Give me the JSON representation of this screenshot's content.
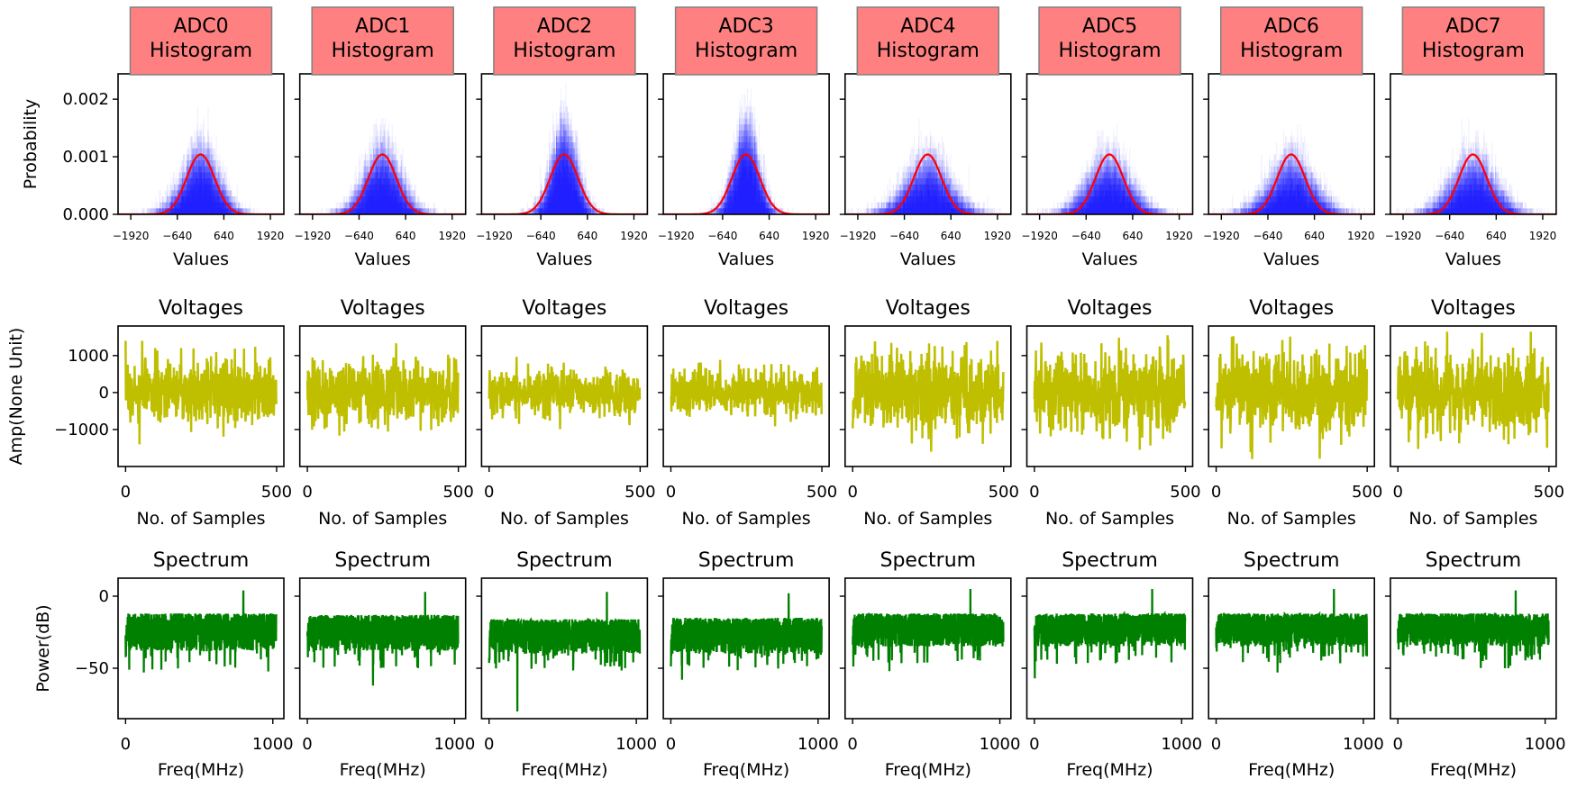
{
  "figure": {
    "colors": {
      "histogram_bars": "#0000ff",
      "fit_curve": "#ff0000",
      "voltage_line": "#bfbf00",
      "spectrum_line": "#008000",
      "title_box_fill": "#ff8080",
      "title_box_edge": "#808080"
    }
  },
  "chart_data": [
    {
      "type": "histogram",
      "title_lines": [
        "ADC0",
        "Histogram"
      ],
      "title_boxed": true,
      "xlabel": "Values",
      "ylabel": "Probability",
      "xlim": [
        -2270,
        2290
      ],
      "ylim": [
        0,
        0.00244
      ],
      "xticks": [
        -1920,
        -640,
        640,
        1920
      ],
      "xticklabels": [
        "−1920",
        "−640",
        "640",
        "1920"
      ],
      "yticks": [
        0,
        0.001,
        0.002
      ],
      "yticklabels": [
        "0.000",
        "0.001",
        "0.002"
      ],
      "sample_std": 450,
      "fit": {
        "mean": 0,
        "sigma": 384,
        "peak": 0.00104
      }
    },
    {
      "type": "histogram",
      "title_lines": [
        "ADC1",
        "Histogram"
      ],
      "title_boxed": true,
      "xlabel": "Values",
      "ylabel": "",
      "xlim": [
        -2270,
        2290
      ],
      "ylim": [
        0,
        0.00244
      ],
      "xticks": [
        -1920,
        -640,
        640,
        1920
      ],
      "xticklabels": [
        "−1920",
        "−640",
        "640",
        "1920"
      ],
      "yticks": [
        0,
        0.001,
        0.002
      ],
      "yticklabels": [],
      "sample_std": 450,
      "fit": {
        "mean": 0,
        "sigma": 384,
        "peak": 0.00104
      }
    },
    {
      "type": "histogram",
      "title_lines": [
        "ADC2",
        "Histogram"
      ],
      "title_boxed": true,
      "xlabel": "Values",
      "ylabel": "",
      "xlim": [
        -2270,
        2290
      ],
      "ylim": [
        0,
        0.00244
      ],
      "xticks": [
        -1920,
        -640,
        640,
        1920
      ],
      "xticklabels": [
        "−1920",
        "−640",
        "640",
        "1920"
      ],
      "yticks": [
        0,
        0.001,
        0.002
      ],
      "yticklabels": [],
      "sample_std": 320,
      "fit": {
        "mean": 0,
        "sigma": 384,
        "peak": 0.00104
      }
    },
    {
      "type": "histogram",
      "title_lines": [
        "ADC3",
        "Histogram"
      ],
      "title_boxed": true,
      "xlabel": "Values",
      "ylabel": "",
      "xlim": [
        -2270,
        2290
      ],
      "ylim": [
        0,
        0.00244
      ],
      "xticks": [
        -1920,
        -640,
        640,
        1920
      ],
      "xticklabels": [
        "−1920",
        "−640",
        "640",
        "1920"
      ],
      "yticks": [
        0,
        0.001,
        0.002
      ],
      "yticklabels": [],
      "sample_std": 310,
      "fit": {
        "mean": 0,
        "sigma": 384,
        "peak": 0.00104
      }
    },
    {
      "type": "histogram",
      "title_lines": [
        "ADC4",
        "Histogram"
      ],
      "title_boxed": true,
      "xlabel": "Values",
      "ylabel": "",
      "xlim": [
        -2270,
        2290
      ],
      "ylim": [
        0,
        0.00244
      ],
      "xticks": [
        -1920,
        -640,
        640,
        1920
      ],
      "xticklabels": [
        "−1920",
        "−640",
        "640",
        "1920"
      ],
      "yticks": [
        0,
        0.001,
        0.002
      ],
      "yticklabels": [],
      "sample_std": 560,
      "fit": {
        "mean": 0,
        "sigma": 384,
        "peak": 0.00104
      }
    },
    {
      "type": "histogram",
      "title_lines": [
        "ADC5",
        "Histogram"
      ],
      "title_boxed": true,
      "xlabel": "Values",
      "ylabel": "",
      "xlim": [
        -2270,
        2290
      ],
      "ylim": [
        0,
        0.00244
      ],
      "xticks": [
        -1920,
        -640,
        640,
        1920
      ],
      "xticklabels": [
        "−1920",
        "−640",
        "640",
        "1920"
      ],
      "yticks": [
        0,
        0.001,
        0.002
      ],
      "yticklabels": [],
      "sample_std": 540,
      "fit": {
        "mean": 0,
        "sigma": 384,
        "peak": 0.00104
      }
    },
    {
      "type": "histogram",
      "title_lines": [
        "ADC6",
        "Histogram"
      ],
      "title_boxed": true,
      "xlabel": "Values",
      "ylabel": "",
      "xlim": [
        -2270,
        2290
      ],
      "ylim": [
        0,
        0.00244
      ],
      "xticks": [
        -1920,
        -640,
        640,
        1920
      ],
      "xticklabels": [
        "−1920",
        "−640",
        "640",
        "1920"
      ],
      "yticks": [
        0,
        0.001,
        0.002
      ],
      "yticklabels": [],
      "sample_std": 560,
      "fit": {
        "mean": 0,
        "sigma": 384,
        "peak": 0.00104
      }
    },
    {
      "type": "histogram",
      "title_lines": [
        "ADC7",
        "Histogram"
      ],
      "title_boxed": true,
      "xlabel": "Values",
      "ylabel": "",
      "xlim": [
        -2270,
        2290
      ],
      "ylim": [
        0,
        0.00244
      ],
      "xticks": [
        -1920,
        -640,
        640,
        1920
      ],
      "xticklabels": [
        "−1920",
        "−640",
        "640",
        "1920"
      ],
      "yticks": [
        0,
        0.001,
        0.002
      ],
      "yticklabels": [],
      "sample_std": 550,
      "fit": {
        "mean": 0,
        "sigma": 384,
        "peak": 0.00104
      }
    },
    {
      "type": "line",
      "title_lines": [
        "Voltages"
      ],
      "xlabel": "No. of Samples",
      "ylabel": "Amp(None Unit)",
      "xlim": [
        -25,
        524
      ],
      "ylim": [
        -2000,
        1800
      ],
      "xticks": [
        0,
        500
      ],
      "xticklabels": [
        "0",
        "500"
      ],
      "yticks": [
        -1000,
        0,
        1000
      ],
      "yticklabels": [
        "−1000",
        "0",
        "1000"
      ],
      "n_samples": 500,
      "std": 450,
      "max_abs": 1400
    },
    {
      "type": "line",
      "title_lines": [
        "Voltages"
      ],
      "xlabel": "No. of Samples",
      "ylabel": "",
      "xlim": [
        -25,
        524
      ],
      "ylim": [
        -2000,
        1800
      ],
      "xticks": [
        0,
        500
      ],
      "xticklabels": [
        "0",
        "500"
      ],
      "yticks": [
        -1000,
        0,
        1000
      ],
      "yticklabels": [],
      "n_samples": 500,
      "std": 450,
      "max_abs": 1350
    },
    {
      "type": "line",
      "title_lines": [
        "Voltages"
      ],
      "xlabel": "No. of Samples",
      "ylabel": "",
      "xlim": [
        -25,
        524
      ],
      "ylim": [
        -2000,
        1800
      ],
      "xticks": [
        0,
        500
      ],
      "xticklabels": [
        "0",
        "500"
      ],
      "yticks": [
        -1000,
        0,
        1000
      ],
      "yticklabels": [],
      "n_samples": 500,
      "std": 320,
      "max_abs": 1000
    },
    {
      "type": "line",
      "title_lines": [
        "Voltages"
      ],
      "xlabel": "No. of Samples",
      "ylabel": "",
      "xlim": [
        -25,
        524
      ],
      "ylim": [
        -2000,
        1800
      ],
      "xticks": [
        0,
        500
      ],
      "xticklabels": [
        "0",
        "500"
      ],
      "yticks": [
        -1000,
        0,
        1000
      ],
      "yticklabels": [],
      "n_samples": 500,
      "std": 310,
      "max_abs": 1000
    },
    {
      "type": "line",
      "title_lines": [
        "Voltages"
      ],
      "xlabel": "No. of Samples",
      "ylabel": "",
      "xlim": [
        -25,
        524
      ],
      "ylim": [
        -2000,
        1800
      ],
      "xticks": [
        0,
        500
      ],
      "xticklabels": [
        "0",
        "500"
      ],
      "yticks": [
        -1000,
        0,
        1000
      ],
      "yticklabels": [],
      "n_samples": 500,
      "std": 560,
      "max_abs": 1600
    },
    {
      "type": "line",
      "title_lines": [
        "Voltages"
      ],
      "xlabel": "No. of Samples",
      "ylabel": "",
      "xlim": [
        -25,
        524
      ],
      "ylim": [
        -2000,
        1800
      ],
      "xticks": [
        0,
        500
      ],
      "xticklabels": [
        "0",
        "500"
      ],
      "yticks": [
        -1000,
        0,
        1000
      ],
      "yticklabels": [],
      "n_samples": 500,
      "std": 540,
      "max_abs": 1550
    },
    {
      "type": "line",
      "title_lines": [
        "Voltages"
      ],
      "xlabel": "No. of Samples",
      "ylabel": "",
      "xlim": [
        -25,
        524
      ],
      "ylim": [
        -2000,
        1800
      ],
      "xticks": [
        0,
        500
      ],
      "xticklabels": [
        "0",
        "500"
      ],
      "yticks": [
        -1000,
        0,
        1000
      ],
      "yticklabels": [],
      "n_samples": 500,
      "std": 560,
      "max_abs": 1800
    },
    {
      "type": "line",
      "title_lines": [
        "Voltages"
      ],
      "xlabel": "No. of Samples",
      "ylabel": "",
      "xlim": [
        -25,
        524
      ],
      "ylim": [
        -2000,
        1800
      ],
      "xticks": [
        0,
        500
      ],
      "xticklabels": [
        "0",
        "500"
      ],
      "yticks": [
        -1000,
        0,
        1000
      ],
      "yticklabels": [],
      "n_samples": 500,
      "std": 550,
      "max_abs": 1650
    },
    {
      "type": "line",
      "title_lines": [
        "Spectrum"
      ],
      "xlabel": "Freq(MHz)",
      "ylabel": "Power(dB)",
      "xlim": [
        -51,
        1075
      ],
      "ylim": [
        -85,
        12.5
      ],
      "xticks": [
        0,
        1000
      ],
      "xticklabels": [
        "0",
        "1000"
      ],
      "yticks": [
        -50,
        0
      ],
      "yticklabels": [
        "−50",
        "0"
      ],
      "freq_max": 1024,
      "noise_band_db": [
        -38,
        -12
      ],
      "min_db": -53,
      "spike": {
        "freq": 800,
        "db": 4
      }
    },
    {
      "type": "line",
      "title_lines": [
        "Spectrum"
      ],
      "xlabel": "Freq(MHz)",
      "ylabel": "",
      "xlim": [
        -51,
        1075
      ],
      "ylim": [
        -85,
        12.5
      ],
      "xticks": [
        0,
        1000
      ],
      "xticklabels": [
        "0",
        "1000"
      ],
      "yticks": [
        -50,
        0
      ],
      "yticklabels": [],
      "freq_max": 1024,
      "noise_band_db": [
        -38,
        -13
      ],
      "min_db": -62,
      "spike": {
        "freq": 800,
        "db": 3
      }
    },
    {
      "type": "line",
      "title_lines": [
        "Spectrum"
      ],
      "xlabel": "Freq(MHz)",
      "ylabel": "",
      "xlim": [
        -51,
        1075
      ],
      "ylim": [
        -85,
        12.5
      ],
      "xticks": [
        0,
        1000
      ],
      "xticklabels": [
        "0",
        "1000"
      ],
      "yticks": [
        -50,
        0
      ],
      "yticklabels": [],
      "freq_max": 1024,
      "noise_band_db": [
        -40,
        -16
      ],
      "min_db": -80,
      "spike": {
        "freq": 800,
        "db": 3
      }
    },
    {
      "type": "line",
      "title_lines": [
        "Spectrum"
      ],
      "xlabel": "Freq(MHz)",
      "ylabel": "",
      "xlim": [
        -51,
        1075
      ],
      "ylim": [
        -85,
        12.5
      ],
      "xticks": [
        0,
        1000
      ],
      "xticklabels": [
        "0",
        "1000"
      ],
      "yticks": [
        -50,
        0
      ],
      "yticklabels": [],
      "freq_max": 1024,
      "noise_band_db": [
        -40,
        -15
      ],
      "min_db": -58,
      "spike": {
        "freq": 800,
        "db": 2
      }
    },
    {
      "type": "line",
      "title_lines": [
        "Spectrum"
      ],
      "xlabel": "Freq(MHz)",
      "ylabel": "",
      "xlim": [
        -51,
        1075
      ],
      "ylim": [
        -85,
        12.5
      ],
      "xticks": [
        0,
        1000
      ],
      "xticklabels": [
        "0",
        "1000"
      ],
      "yticks": [
        -50,
        0
      ],
      "yticklabels": [],
      "freq_max": 1024,
      "noise_band_db": [
        -35,
        -12
      ],
      "min_db": -52,
      "spike": {
        "freq": 800,
        "db": 5
      }
    },
    {
      "type": "line",
      "title_lines": [
        "Spectrum"
      ],
      "xlabel": "Freq(MHz)",
      "ylabel": "",
      "xlim": [
        -51,
        1075
      ],
      "ylim": [
        -85,
        12.5
      ],
      "xticks": [
        0,
        1000
      ],
      "xticklabels": [
        "0",
        "1000"
      ],
      "yticks": [
        -50,
        0
      ],
      "yticklabels": [],
      "freq_max": 1024,
      "noise_band_db": [
        -35,
        -12
      ],
      "min_db": -57,
      "spike": {
        "freq": 800,
        "db": 5
      }
    },
    {
      "type": "line",
      "title_lines": [
        "Spectrum"
      ],
      "xlabel": "Freq(MHz)",
      "ylabel": "",
      "xlim": [
        -51,
        1075
      ],
      "ylim": [
        -85,
        12.5
      ],
      "xticks": [
        0,
        1000
      ],
      "xticklabels": [
        "0",
        "1000"
      ],
      "yticks": [
        -50,
        0
      ],
      "yticklabels": [],
      "freq_max": 1024,
      "noise_band_db": [
        -35,
        -12
      ],
      "min_db": -53,
      "spike": {
        "freq": 800,
        "db": 5
      }
    },
    {
      "type": "line",
      "title_lines": [
        "Spectrum"
      ],
      "xlabel": "Freq(MHz)",
      "ylabel": "",
      "xlim": [
        -51,
        1075
      ],
      "ylim": [
        -85,
        12.5
      ],
      "xticks": [
        0,
        1000
      ],
      "xticklabels": [
        "0",
        "1000"
      ],
      "yticks": [
        -50,
        0
      ],
      "yticklabels": [],
      "freq_max": 1024,
      "noise_band_db": [
        -35,
        -12
      ],
      "min_db": -50,
      "spike": {
        "freq": 800,
        "db": 4
      }
    }
  ]
}
